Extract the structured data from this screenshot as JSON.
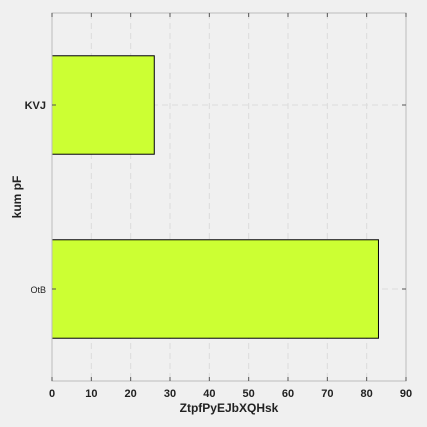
{
  "chart_data": {
    "type": "bar",
    "orientation": "horizontal",
    "categories": [
      "KVJ",
      "OtB"
    ],
    "category_label_bold": [
      true,
      false
    ],
    "values": [
      26,
      83
    ],
    "xlabel": "ZtpfPyEJbXQHsk",
    "ylabel": "kum pF",
    "xlim": [
      0,
      90
    ],
    "xticks": [
      0,
      10,
      20,
      30,
      40,
      50,
      60,
      70,
      80,
      90
    ],
    "grid": true,
    "bar_color": "#ccff33",
    "bar_edge_color": "#000000",
    "grid_color": "#dcdcdc",
    "spine_color": "#bbbbbb",
    "background_color": "#f0f0f0"
  }
}
